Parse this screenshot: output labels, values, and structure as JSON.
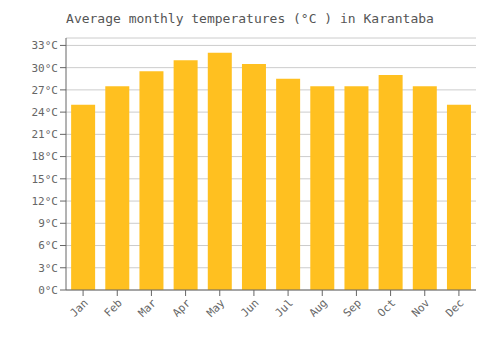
{
  "chart_data": {
    "type": "bar",
    "title": "Average monthly temperatures (°C ) in Karantaba",
    "categories": [
      "Jan",
      "Feb",
      "Mar",
      "Apr",
      "May",
      "Jun",
      "Jul",
      "Aug",
      "Sep",
      "Oct",
      "Nov",
      "Dec"
    ],
    "values": [
      25.0,
      27.5,
      29.5,
      31.0,
      32.0,
      30.5,
      28.5,
      27.5,
      27.5,
      29.0,
      27.5,
      25.0
    ],
    "color": "#FFC020",
    "ylim": [
      0,
      34
    ],
    "yticks": [
      {
        "value": 0,
        "label": "0°C"
      },
      {
        "value": 3,
        "label": "3°C"
      },
      {
        "value": 6,
        "label": "6°C"
      },
      {
        "value": 9,
        "label": "9°C"
      },
      {
        "value": 12,
        "label": "12°C"
      },
      {
        "value": 15,
        "label": "15°C"
      },
      {
        "value": 18,
        "label": "18°C"
      },
      {
        "value": 21,
        "label": "21°C"
      },
      {
        "value": 24,
        "label": "24°C"
      },
      {
        "value": 27,
        "label": "27°C"
      },
      {
        "value": 30,
        "label": "30°C"
      },
      {
        "value": 33,
        "label": "33°C"
      }
    ],
    "grid": true
  }
}
